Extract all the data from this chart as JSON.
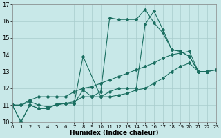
{
  "xlabel": "Humidex (Indice chaleur)",
  "background_color": "#c8e8e8",
  "grid_color": "#a8cccc",
  "line_color": "#1a6e60",
  "xlim": [
    0,
    23
  ],
  "ylim": [
    10,
    17
  ],
  "yticks": [
    10,
    11,
    12,
    13,
    14,
    15,
    16,
    17
  ],
  "xticks": [
    0,
    1,
    2,
    3,
    4,
    5,
    6,
    7,
    8,
    9,
    10,
    11,
    12,
    13,
    14,
    15,
    16,
    17,
    18,
    19,
    20,
    21,
    22,
    23
  ],
  "series": [
    {
      "x": [
        0,
        1,
        2,
        3,
        4,
        5,
        6,
        7,
        8,
        10,
        11,
        12,
        13,
        14,
        15,
        16,
        17,
        18,
        19,
        20,
        21,
        22
      ],
      "y": [
        11.0,
        10.0,
        11.0,
        10.8,
        10.8,
        11.05,
        11.1,
        11.1,
        13.9,
        11.5,
        11.8,
        12.0,
        12.0,
        12.0,
        15.8,
        16.6,
        15.5,
        14.3,
        14.2,
        13.9,
        13.0,
        13.0
      ]
    },
    {
      "x": [
        0,
        1,
        2,
        3,
        4,
        5,
        6,
        7,
        8,
        9,
        10,
        11,
        12,
        13,
        14,
        15,
        16,
        17,
        18,
        19,
        20,
        21,
        22
      ],
      "y": [
        11.0,
        10.0,
        11.0,
        10.8,
        10.8,
        11.05,
        11.1,
        11.1,
        11.9,
        11.5,
        11.8,
        16.2,
        16.1,
        16.1,
        16.1,
        16.7,
        15.9,
        15.3,
        14.3,
        14.2,
        13.9,
        13.0,
        13.0
      ]
    },
    {
      "x": [
        0,
        1,
        2,
        3,
        4,
        5,
        6,
        7,
        8,
        9,
        10,
        11,
        12,
        13,
        14,
        15,
        16,
        17,
        18,
        19,
        20,
        21,
        22,
        23
      ],
      "y": [
        11.0,
        11.0,
        11.3,
        11.5,
        11.5,
        11.5,
        11.5,
        11.8,
        12.0,
        12.1,
        12.3,
        12.5,
        12.7,
        12.9,
        13.1,
        13.3,
        13.5,
        13.8,
        14.0,
        14.1,
        14.2,
        13.0,
        13.0,
        13.1
      ]
    },
    {
      "x": [
        0,
        1,
        2,
        3,
        4,
        5,
        6,
        7,
        8,
        9,
        10,
        11,
        12,
        13,
        14,
        15,
        16,
        17,
        18,
        19,
        20,
        21,
        22,
        23
      ],
      "y": [
        11.0,
        11.0,
        11.2,
        11.0,
        10.9,
        11.0,
        11.1,
        11.2,
        11.5,
        11.5,
        11.5,
        11.5,
        11.6,
        11.7,
        11.9,
        12.0,
        12.3,
        12.6,
        13.0,
        13.3,
        13.5,
        13.0,
        13.0,
        13.1
      ]
    }
  ]
}
